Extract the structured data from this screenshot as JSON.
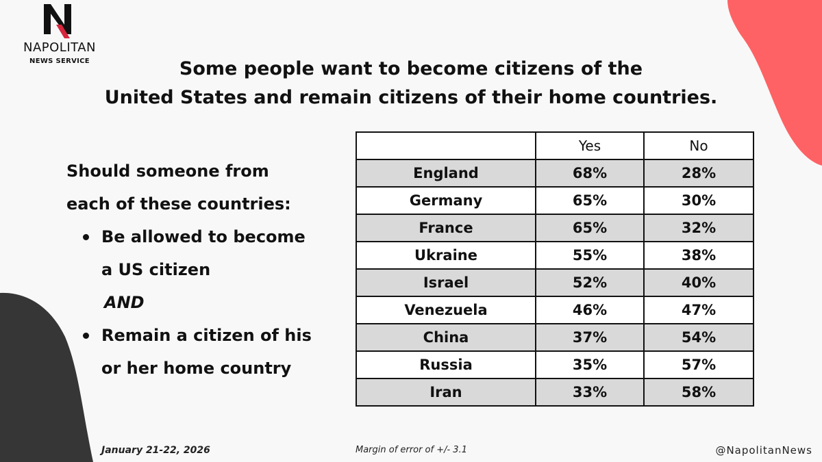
{
  "brand": {
    "name": "NAPOLITAN",
    "subtitle": "NEWS SERVICE"
  },
  "title": {
    "line1": "Some people want to become citizens of the",
    "line2": "United States and remain citizens of their home countries."
  },
  "question": {
    "line1": "Should someone from",
    "line2": "each of these countries:",
    "bullet1_line1": "Be allowed to become",
    "bullet1_line2": "a US citizen",
    "and": "AND",
    "bullet2_line1": "Remain a citizen of his",
    "bullet2_line2": "or her home country"
  },
  "chart_data": {
    "type": "table",
    "columns": [
      "",
      "Yes",
      "No"
    ],
    "rows": [
      {
        "country": "England",
        "yes": "68%",
        "no": "28%"
      },
      {
        "country": "Germany",
        "yes": "65%",
        "no": "30%"
      },
      {
        "country": "France",
        "yes": "65%",
        "no": "32%"
      },
      {
        "country": "Ukraine",
        "yes": "55%",
        "no": "38%"
      },
      {
        "country": "Israel",
        "yes": "52%",
        "no": "40%"
      },
      {
        "country": "Venezuela",
        "yes": "46%",
        "no": "47%"
      },
      {
        "country": "China",
        "yes": "37%",
        "no": "54%"
      },
      {
        "country": "Russia",
        "yes": "35%",
        "no": "57%"
      },
      {
        "country": "Iran",
        "yes": "33%",
        "no": "58%"
      }
    ]
  },
  "footer": {
    "date": "January 21-22, 2026",
    "margin_of_error": "Margin of error of +/- 3.1",
    "handle": "@NapolitanNews"
  },
  "colors": {
    "accent_coral": "#ff6264",
    "dark_shape": "#363636",
    "row_shade": "#d9d9d9",
    "logo_red": "#d7263d"
  }
}
